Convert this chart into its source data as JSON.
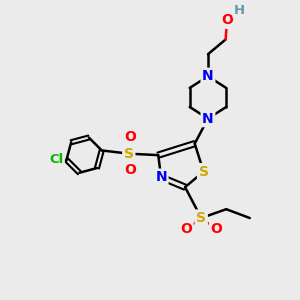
{
  "bg_color": "#ebebeb",
  "atom_colors": {
    "C": "#000000",
    "N": "#0000ee",
    "O": "#ff0000",
    "S": "#ccaa00",
    "Cl": "#00bb00",
    "H": "#6699aa"
  },
  "bond_color": "#000000",
  "bond_width": 1.8,
  "xlim": [
    0,
    10
  ],
  "ylim": [
    0,
    10
  ]
}
